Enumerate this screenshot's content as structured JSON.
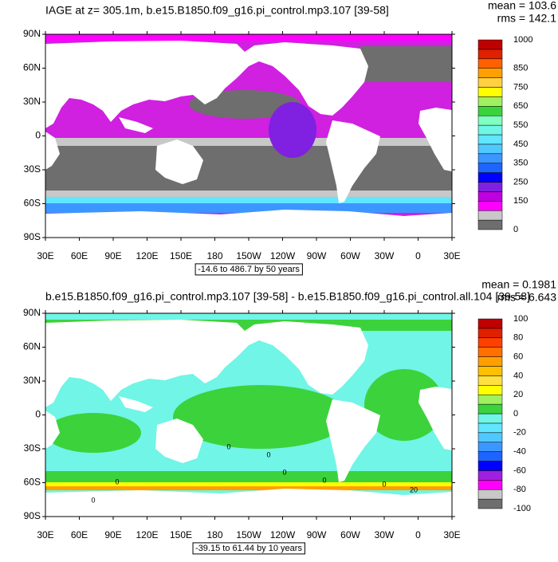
{
  "panels": [
    {
      "title": "IAGE at z= 305.1m, b.e15.B1850.f09_g16.pi_control.mp3.107 [39-58]",
      "stats": [
        "mean = 103.6",
        "rms = 142.1"
      ],
      "lat_labels": [
        "90N",
        "60N",
        "30N",
        "0",
        "30S",
        "60S",
        "90S"
      ],
      "lon_labels": [
        "30E",
        "60E",
        "90E",
        "120E",
        "150E",
        "180",
        "150W",
        "120W",
        "90W",
        "60W",
        "30W",
        "0",
        "30E"
      ],
      "range": "-14.6 to 486.7 by 50 years",
      "colorbar": {
        "labels": [
          1000,
          850,
          750,
          650,
          550,
          450,
          350,
          250,
          150,
          0
        ],
        "colors": [
          "#6e6e6e",
          "#c8c8c8",
          "#ff00ff",
          "#c000e0",
          "#8020e0",
          "#0000ff",
          "#1e64ff",
          "#3c96ff",
          "#50c8ff",
          "#60e6ff",
          "#70f5e6",
          "#80ffc0",
          "#3cd23c",
          "#a0f060",
          "#ffff00",
          "#ffd040",
          "#ffa000",
          "#ff6000",
          "#e02000",
          "#c00000"
        ]
      }
    },
    {
      "title": "b.e15.B1850.f09_g16.pi_control.mp3.107 [39-58] - b.e15.B1850.f09_g16.pi_control.all.104 [39-58]",
      "stats": [
        "mean = 0.1981",
        "rms = 6.643"
      ],
      "lat_labels": [
        "90N",
        "60N",
        "30N",
        "0",
        "30S",
        "60S",
        "90S"
      ],
      "lon_labels": [
        "30E",
        "60E",
        "90E",
        "120E",
        "150E",
        "180",
        "150W",
        "120W",
        "90W",
        "60W",
        "30W",
        "0",
        "30E"
      ],
      "range": "-39.15 to 61.44 by 10 years",
      "colorbar": {
        "labels": [
          100,
          80,
          60,
          40,
          20,
          0,
          -20,
          -40,
          -60,
          -80,
          -100
        ],
        "colors": [
          "#6e6e6e",
          "#c8c8c8",
          "#ff00ff",
          "#a020e0",
          "#0000ff",
          "#1e64ff",
          "#3c96ff",
          "#50c8ff",
          "#60e6ff",
          "#70f5e6",
          "#3cd23c",
          "#a0f060",
          "#ffff00",
          "#ffe040",
          "#ffc000",
          "#ffa000",
          "#ff7000",
          "#ff4000",
          "#e02000",
          "#c00000"
        ]
      },
      "contour_labels": [
        "0",
        "0",
        "0",
        "0",
        "0",
        "0",
        "0",
        "20"
      ]
    }
  ]
}
